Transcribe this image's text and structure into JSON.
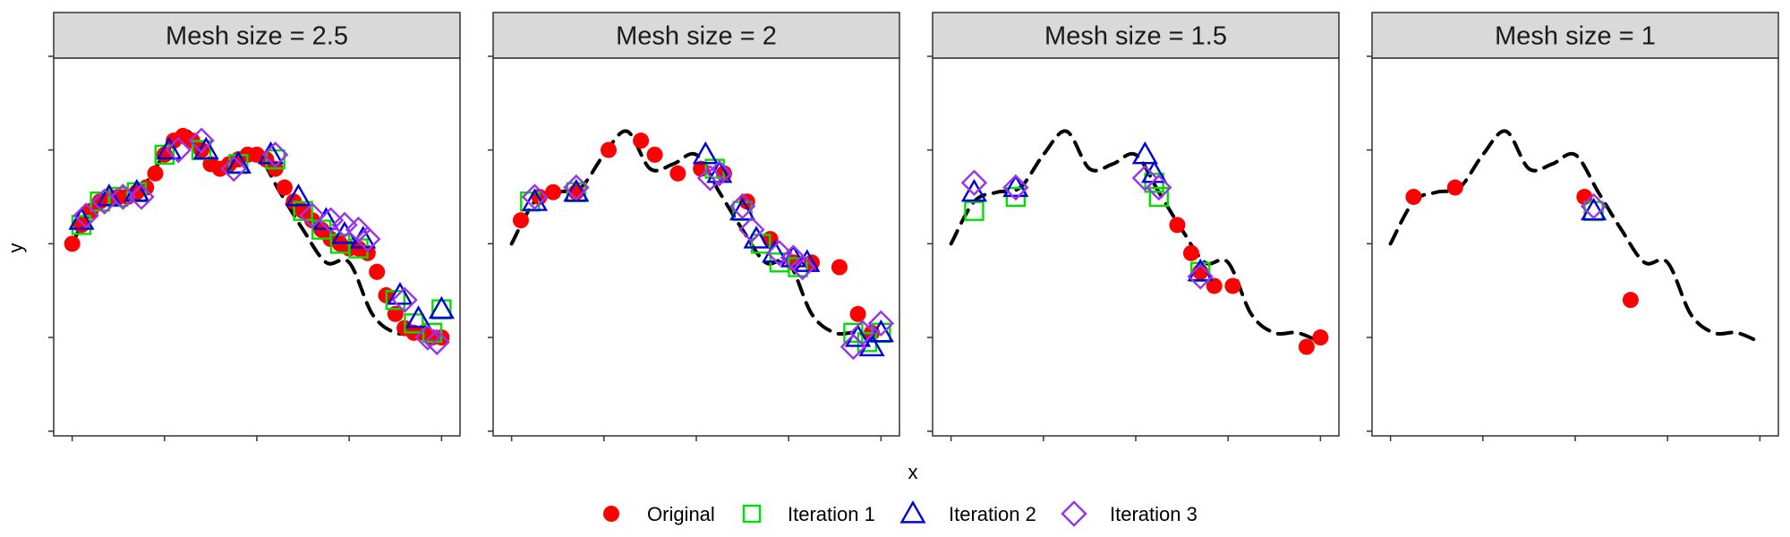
{
  "chart_data": {
    "type": "scatter",
    "xlabel": "x",
    "ylabel": "y",
    "x_ticks": [
      0,
      1,
      2,
      3,
      4
    ],
    "y_ticks": [
      -2,
      -1,
      0,
      1,
      2
    ],
    "xlim": [
      -0.2,
      4.2
    ],
    "ylim": [
      -2.05,
      1.98
    ],
    "legend_position": "bottom",
    "colors": {
      "original": "#ff0000",
      "iteration1": "#00e000",
      "iteration2": "#0000dd",
      "iteration3": "#9933ee",
      "curve": "#000000"
    },
    "legend": [
      {
        "name": "Original",
        "shape": "circle",
        "color": "#ff0000"
      },
      {
        "name": "Iteration 1",
        "shape": "square",
        "color": "#00e000"
      },
      {
        "name": "Iteration 2",
        "shape": "triangle",
        "color": "#0000dd"
      },
      {
        "name": "Iteration 3",
        "shape": "diamond",
        "color": "#9933ee"
      }
    ],
    "curve": {
      "x": [
        0,
        0.25,
        0.5,
        0.75,
        1,
        1.25,
        1.5,
        1.75,
        2,
        2.25,
        2.5,
        2.75,
        3,
        3.25,
        3.5,
        3.75,
        4
      ],
      "y": [
        0,
        0.45,
        0.55,
        0.6,
        0.95,
        1.2,
        0.8,
        0.85,
        0.95,
        0.55,
        0.15,
        -0.2,
        -0.2,
        -0.75,
        -0.95,
        -0.95,
        -1.05
      ]
    },
    "panels": [
      {
        "title": "Mesh size = 2.5",
        "original": {
          "x": [
            0,
            0.1,
            0.2,
            0.3,
            0.4,
            0.5,
            0.6,
            0.7,
            0.8,
            0.9,
            1.0,
            1.1,
            1.2,
            1.3,
            1.4,
            1.5,
            1.6,
            1.7,
            1.8,
            1.9,
            2.0,
            2.1,
            2.2,
            2.3,
            2.4,
            2.5,
            2.6,
            2.7,
            2.8,
            2.9,
            3.0,
            3.1,
            3.2,
            3.3,
            3.4,
            3.5,
            3.6,
            3.7,
            3.8,
            3.9,
            4.0
          ],
          "y": [
            0.0,
            0.2,
            0.35,
            0.45,
            0.5,
            0.5,
            0.5,
            0.55,
            0.6,
            0.75,
            0.95,
            1.1,
            1.15,
            1.1,
            1.0,
            0.85,
            0.8,
            0.85,
            0.9,
            0.95,
            0.95,
            0.9,
            0.8,
            0.6,
            0.45,
            0.35,
            0.25,
            0.15,
            0.05,
            0.0,
            -0.05,
            -0.05,
            -0.1,
            -0.3,
            -0.55,
            -0.75,
            -0.9,
            -0.95,
            -0.95,
            -1.0,
            -1.0
          ]
        },
        "iteration1": {
          "x": [
            0.1,
            0.3,
            0.5,
            0.7,
            1.0,
            1.4,
            1.8,
            2.2,
            2.5,
            2.7,
            2.9,
            3.1,
            3.5,
            3.7,
            3.9,
            4.0
          ],
          "y": [
            0.2,
            0.45,
            0.5,
            0.55,
            0.95,
            1.0,
            0.85,
            0.9,
            0.35,
            0.15,
            0.0,
            -0.05,
            -0.6,
            -0.85,
            -0.95,
            -0.7
          ]
        },
        "iteration2": {
          "x": [
            0.1,
            0.4,
            0.7,
            1.05,
            1.45,
            1.8,
            2.15,
            2.45,
            2.75,
            2.95,
            3.15,
            3.55,
            3.75,
            4.0
          ],
          "y": [
            0.25,
            0.5,
            0.55,
            1.0,
            1.0,
            0.85,
            0.95,
            0.5,
            0.25,
            0.1,
            0.05,
            -0.55,
            -0.8,
            -0.7
          ]
        },
        "iteration3": {
          "x": [
            0.15,
            0.35,
            0.55,
            0.75,
            1.15,
            1.4,
            1.75,
            2.2,
            2.6,
            2.8,
            2.95,
            3.1,
            3.2,
            3.6,
            3.85,
            3.95
          ],
          "y": [
            0.3,
            0.45,
            0.5,
            0.5,
            1.0,
            1.1,
            0.8,
            0.95,
            0.3,
            0.25,
            0.2,
            0.15,
            0.05,
            -0.6,
            -1.0,
            -1.05
          ]
        }
      },
      {
        "title": "Mesh size = 2",
        "original": {
          "x": [
            0.1,
            0.3,
            0.45,
            0.7,
            1.05,
            1.4,
            1.55,
            1.8,
            2.05,
            2.3,
            2.55,
            2.8,
            3.05,
            3.25,
            3.55,
            3.75,
            3.9
          ],
          "y": [
            0.25,
            0.5,
            0.55,
            0.55,
            1.0,
            1.1,
            0.95,
            0.75,
            0.8,
            0.75,
            0.45,
            0.05,
            -0.2,
            -0.2,
            -0.25,
            -0.75,
            -0.95
          ]
        },
        "iteration1": {
          "x": [
            0.2,
            0.7,
            2.2,
            2.5,
            2.7,
            2.9,
            3.1,
            3.7,
            3.85,
            4.0
          ],
          "y": [
            0.45,
            0.55,
            0.8,
            0.35,
            0.0,
            -0.2,
            -0.25,
            -0.95,
            -1.05,
            -0.95
          ]
        },
        "iteration2": {
          "x": [
            0.25,
            0.7,
            2.1,
            2.25,
            2.5,
            2.65,
            2.85,
            3.05,
            3.2,
            3.75,
            3.9,
            4.0
          ],
          "y": [
            0.45,
            0.55,
            0.95,
            0.75,
            0.35,
            0.05,
            -0.1,
            -0.15,
            -0.2,
            -1.0,
            -1.1,
            -0.95
          ]
        },
        "iteration3": {
          "x": [
            0.25,
            0.7,
            2.15,
            2.25,
            2.5,
            2.6,
            2.9,
            3.05,
            3.15,
            3.7,
            3.8,
            4.0
          ],
          "y": [
            0.5,
            0.6,
            0.7,
            0.75,
            0.4,
            0.15,
            -0.1,
            -0.15,
            -0.25,
            -1.1,
            -0.95,
            -0.85
          ]
        }
      },
      {
        "title": "Mesh size = 1.5",
        "original": {
          "x": [
            2.45,
            2.6,
            2.7,
            2.85,
            3.05,
            3.85,
            4.0
          ],
          "y": [
            0.2,
            -0.1,
            -0.3,
            -0.45,
            -0.45,
            -1.1,
            -1.0
          ]
        },
        "iteration1": {
          "x": [
            0.25,
            0.7,
            2.2,
            2.25,
            2.7
          ],
          "y": [
            0.35,
            0.5,
            0.65,
            0.5,
            -0.3
          ]
        },
        "iteration2": {
          "x": [
            0.25,
            0.7,
            2.1,
            2.2,
            2.7
          ],
          "y": [
            0.55,
            0.6,
            0.95,
            0.75,
            -0.3
          ]
        },
        "iteration3": {
          "x": [
            0.25,
            0.7,
            2.1,
            2.25,
            2.7
          ],
          "y": [
            0.65,
            0.6,
            0.7,
            0.6,
            -0.35
          ]
        }
      },
      {
        "title": "Mesh size = 1",
        "original": {
          "x": [
            0.25,
            0.7,
            2.1,
            2.6
          ],
          "y": [
            0.5,
            0.6,
            0.5,
            -0.6
          ]
        },
        "iteration1": {
          "x": [
            2.2
          ],
          "y": [
            0.35
          ]
        },
        "iteration2": {
          "x": [
            2.2
          ],
          "y": [
            0.35
          ]
        },
        "iteration3": {
          "x": [
            2.2
          ],
          "y": [
            0.4
          ]
        }
      }
    ]
  }
}
